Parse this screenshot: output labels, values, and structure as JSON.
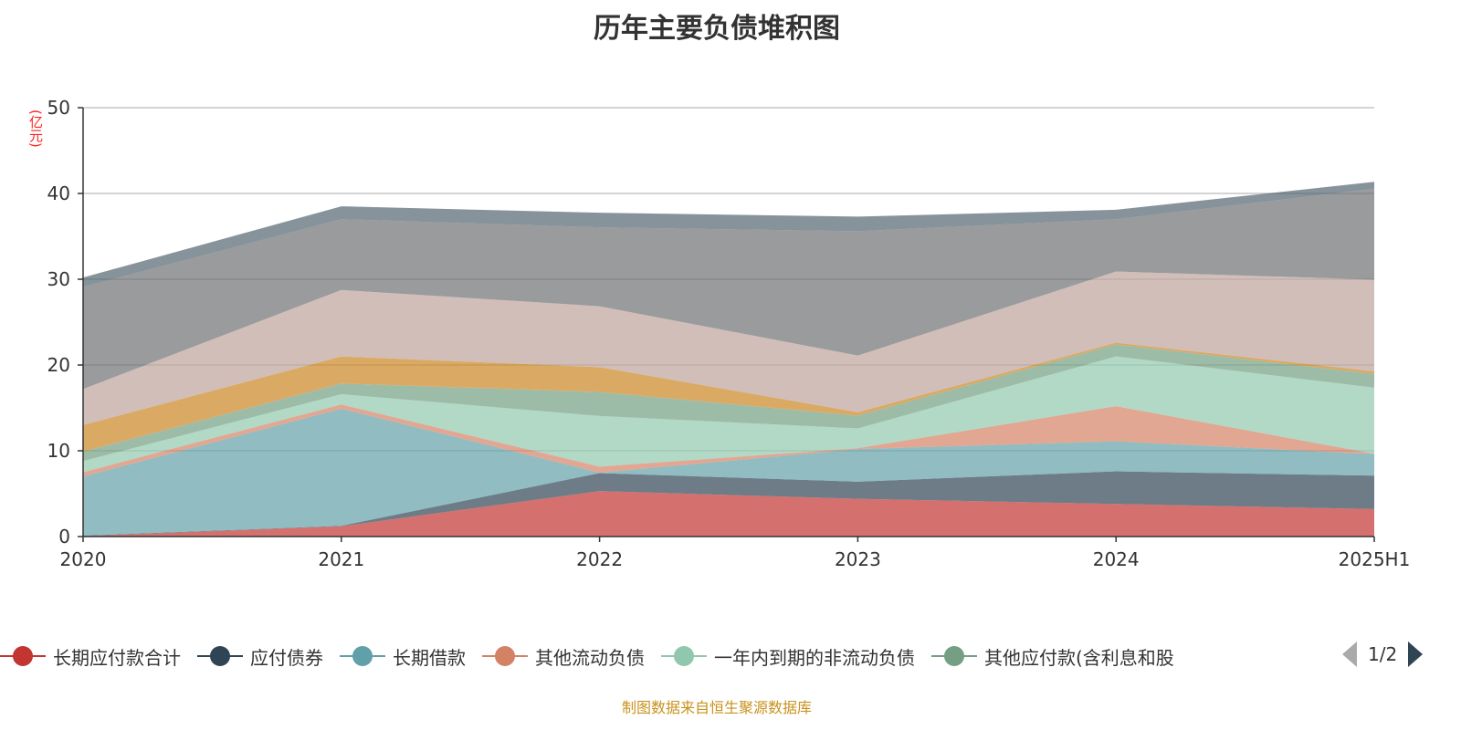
{
  "title": "历年主要负债堆积图",
  "source_note": "制图数据来自恒生聚源数据库",
  "legend_pager": {
    "page_text": "1/2",
    "prev_icon": "triangle-left-icon",
    "next_icon": "triangle-right-icon"
  },
  "chart_data": {
    "type": "area",
    "stacked": true,
    "title": "历年主要负债堆积图",
    "ylabel": "(亿元)",
    "ylim": [
      0,
      50
    ],
    "yticks": [
      "0",
      "10",
      "20",
      "30",
      "40",
      "50"
    ],
    "grid": "horizontal",
    "legend_placement": "bottom",
    "categories": [
      "2020",
      "2021",
      "2022",
      "2023",
      "2024",
      "2025H1"
    ],
    "series": [
      {
        "name": "长期应付款合计",
        "color": "#c23531",
        "values": [
          0.05,
          1.2,
          5.3,
          4.4,
          3.8,
          3.2
        ]
      },
      {
        "name": "应付债券",
        "color": "#2f4554",
        "values": [
          0.05,
          0.05,
          2.1,
          2.0,
          3.8,
          3.9
        ]
      },
      {
        "name": "长期借款",
        "color": "#61a0a8",
        "values": [
          6.9,
          13.65,
          0.05,
          3.8,
          3.5,
          2.5
        ]
      },
      {
        "name": "其他流动负债",
        "color": "#d48265",
        "values": [
          0.5,
          0.5,
          0.7,
          0.1,
          4.1,
          0.05
        ]
      },
      {
        "name": "一年内到期的非流动负债",
        "color": "#91c7ae",
        "values": [
          1.3,
          1.2,
          5.9,
          2.3,
          5.8,
          7.7
        ]
      },
      {
        "name": "其他应付款(含利息和股",
        "color": "#749f83",
        "values": [
          1.1,
          1.25,
          2.8,
          1.5,
          1.4,
          1.6
        ]
      },
      {
        "color": "#ca8622",
        "values": [
          3.1,
          3.15,
          2.9,
          0.4,
          0.2,
          0.3
        ]
      },
      {
        "color": "#bda29a",
        "values": [
          4.2,
          7.75,
          7.1,
          6.6,
          8.3,
          10.7
        ]
      },
      {
        "color": "#6e7074",
        "values": [
          11.9,
          8.25,
          9.2,
          14.5,
          6.1,
          10.6
        ]
      },
      {
        "color": "#546570",
        "values": [
          1.1,
          1.5,
          1.7,
          1.7,
          1.1,
          0.8
        ]
      }
    ]
  }
}
